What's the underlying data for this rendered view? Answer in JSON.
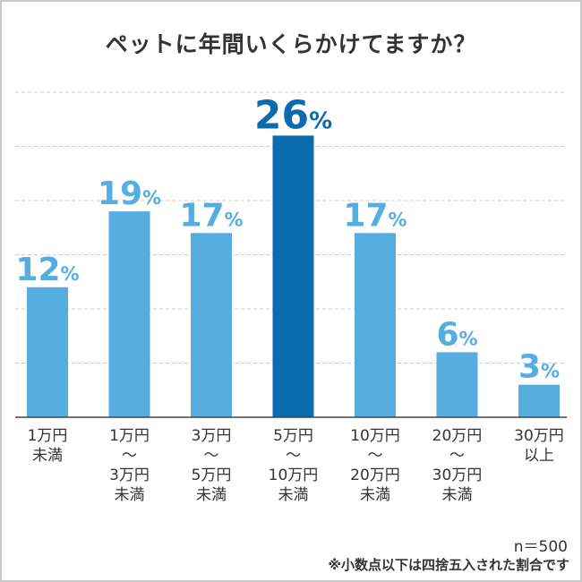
{
  "chart_data": {
    "type": "bar",
    "title": "ペットに年間いくらかけてますか？",
    "categories": [
      "1万円\n未満",
      "1万円\n〜\n3万円\n未満",
      "3万円\n〜\n5万円\n未満",
      "5万円\n〜\n10万円\n未満",
      "10万円\n〜\n20万円\n未満",
      "20万円\n〜\n30万円\n未満",
      "30万円\n以上"
    ],
    "values": [
      12,
      19,
      17,
      26,
      17,
      6,
      3
    ],
    "value_labels": [
      "12",
      "19",
      "17",
      "26",
      "17",
      "6",
      "3"
    ],
    "unit": "%",
    "ylim": [
      0,
      30
    ],
    "grid": true,
    "highlight_index": 3,
    "colors": {
      "bar": "#55ADE0",
      "highlight": "#0A6CAF",
      "grid": "#cccccc",
      "axis": "#444444"
    },
    "sample_size": "n＝500",
    "footnote": "※小数点以下は四捨五入された割合です"
  }
}
